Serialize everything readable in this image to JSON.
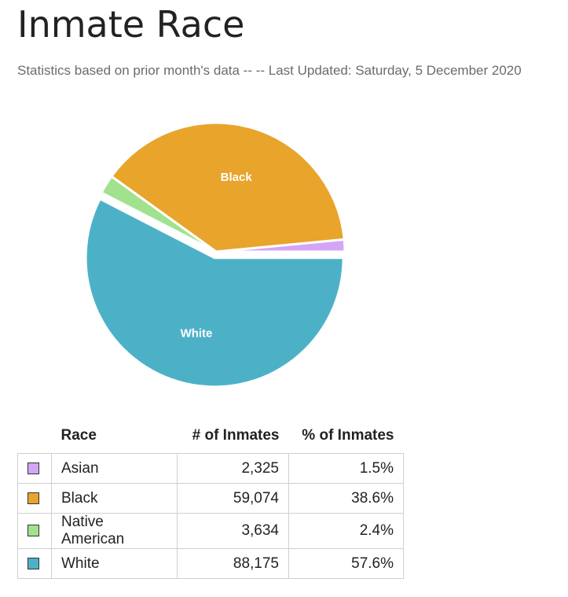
{
  "page": {
    "title": "Inmate Race",
    "subtitle": "Statistics based on prior month's data -- -- Last Updated: Saturday, 5 December 2020"
  },
  "table": {
    "headers": [
      "Race",
      "# of Inmates",
      "% of Inmates"
    ],
    "rows": [
      {
        "race": "Asian",
        "count": "2,325",
        "percent": "1.5%",
        "color": "#d4a5f5"
      },
      {
        "race": "Black",
        "count": "59,074",
        "percent": "38.6%",
        "color": "#e8a42b"
      },
      {
        "race": "Native American",
        "count": "3,634",
        "percent": "2.4%",
        "color": "#a1e28f"
      },
      {
        "race": "White",
        "count": "88,175",
        "percent": "57.6%",
        "color": "#4cb1c7"
      }
    ]
  },
  "chart_data": {
    "type": "pie",
    "categories": [
      "Asian",
      "Black",
      "Native American",
      "White"
    ],
    "values": [
      2325,
      59074,
      3634,
      88175
    ],
    "percentages": [
      1.5,
      38.6,
      2.4,
      57.6
    ],
    "colors": [
      "#d4a5f5",
      "#e8a42b",
      "#a1e28f",
      "#4cb1c7"
    ],
    "slice_labels": [
      "",
      "Black",
      "",
      "White"
    ],
    "exploded": "White",
    "legend": "none"
  }
}
